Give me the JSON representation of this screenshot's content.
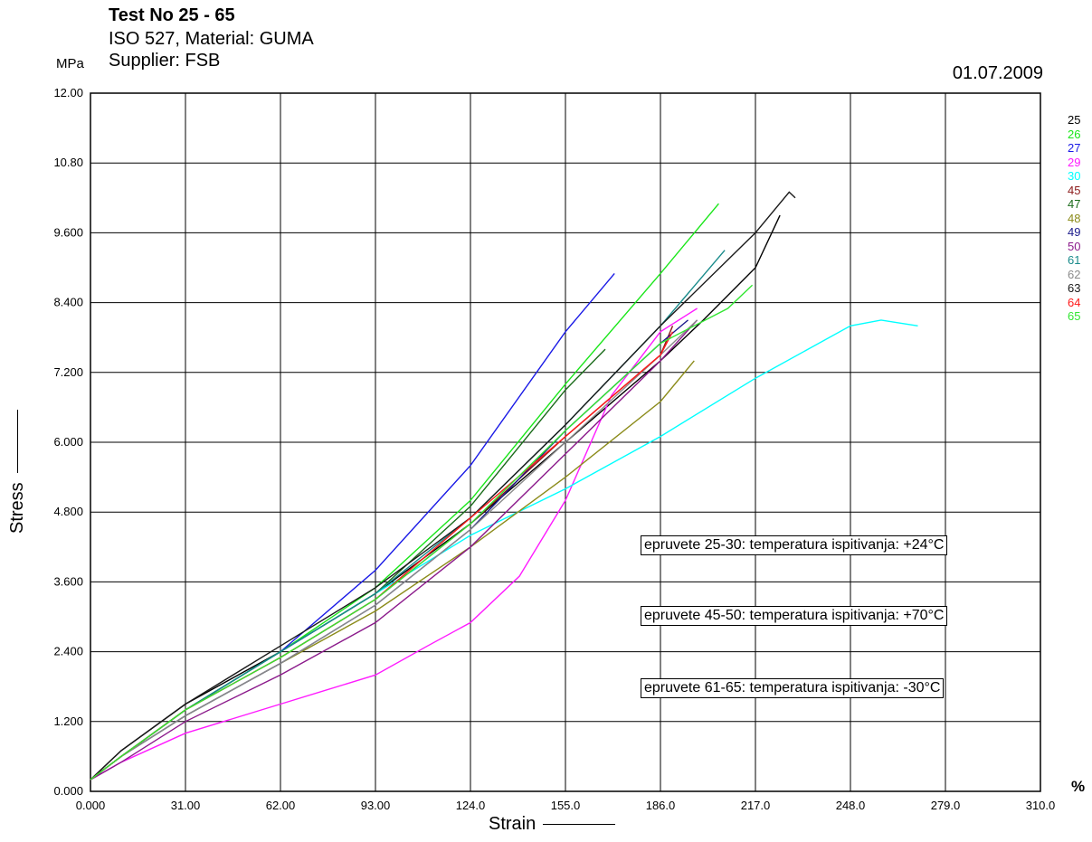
{
  "header": {
    "title": "Test No  25 - 65",
    "line2": "ISO 527, Material: GUMA",
    "line3": "Supplier: FSB",
    "date": "01.07.2009"
  },
  "colors": {
    "25": "#000000",
    "26": "#19e619",
    "27": "#1a1ae6",
    "29": "#ff1aff",
    "30": "#00ffff",
    "45": "#8b1a1a",
    "47": "#1a6b1a",
    "48": "#8b8b1a",
    "49": "#1a1a8b",
    "50": "#8b1a8b",
    "61": "#1a8b8b",
    "62": "#8b8b8b",
    "63": "#1a1a1a",
    "64": "#ff1a1a",
    "65": "#33e633"
  },
  "notes": [
    "epruvete 25-30: temperatura ispitivanja: +24°C",
    "epruvete 45-50: temperatura ispitivanja: +70°C",
    "epruvete 61-65: temperatura ispitivanja: -30°C"
  ],
  "chart_data": {
    "type": "line",
    "title": "Test No  25 - 65",
    "xlabel": "Strain",
    "ylabel": "Stress",
    "x_unit": "%",
    "y_unit": "MPa",
    "xlim": [
      0,
      310
    ],
    "ylim": [
      0,
      12
    ],
    "grid": true,
    "legend_position": "right",
    "x_ticks": [
      "0.000",
      "31.00",
      "62.00",
      "93.00",
      "124.0",
      "155.0",
      "186.0",
      "217.0",
      "248.0",
      "279.0",
      "310.0"
    ],
    "y_ticks": [
      "0.000",
      "1.200",
      "2.400",
      "3.600",
      "4.800",
      "6.000",
      "7.200",
      "8.400",
      "9.600",
      "10.80",
      "12.00"
    ],
    "series": [
      {
        "name": "25",
        "color": "#000000",
        "points": [
          [
            0,
            0.2
          ],
          [
            10,
            0.7
          ],
          [
            31,
            1.5
          ],
          [
            62,
            2.4
          ],
          [
            93,
            3.4
          ],
          [
            124,
            4.6
          ],
          [
            155,
            6.0
          ],
          [
            186,
            7.4
          ],
          [
            200,
            8.1
          ],
          [
            217,
            9.0
          ],
          [
            225,
            9.9
          ]
        ]
      },
      {
        "name": "26",
        "color": "#19e619",
        "points": [
          [
            0,
            0.2
          ],
          [
            10,
            0.6
          ],
          [
            31,
            1.4
          ],
          [
            62,
            2.4
          ],
          [
            93,
            3.5
          ],
          [
            124,
            5.0
          ],
          [
            155,
            7.0
          ],
          [
            186,
            8.9
          ],
          [
            205,
            10.1
          ]
        ]
      },
      {
        "name": "27",
        "color": "#1a1ae6",
        "points": [
          [
            0,
            0.2
          ],
          [
            10,
            0.6
          ],
          [
            31,
            1.4
          ],
          [
            62,
            2.4
          ],
          [
            93,
            3.8
          ],
          [
            124,
            5.6
          ],
          [
            155,
            7.9
          ],
          [
            171,
            8.9
          ]
        ]
      },
      {
        "name": "29",
        "color": "#ff1aff",
        "points": [
          [
            0,
            0.2
          ],
          [
            10,
            0.5
          ],
          [
            31,
            1.0
          ],
          [
            62,
            1.5
          ],
          [
            93,
            2.0
          ],
          [
            110,
            2.5
          ],
          [
            124,
            2.9
          ],
          [
            140,
            3.7
          ],
          [
            155,
            5.0
          ],
          [
            170,
            6.8
          ],
          [
            186,
            7.9
          ],
          [
            198,
            8.3
          ]
        ]
      },
      {
        "name": "30",
        "color": "#00ffff",
        "points": [
          [
            0,
            0.2
          ],
          [
            10,
            0.6
          ],
          [
            31,
            1.4
          ],
          [
            62,
            2.4
          ],
          [
            93,
            3.4
          ],
          [
            124,
            4.4
          ],
          [
            155,
            5.2
          ],
          [
            186,
            6.1
          ],
          [
            217,
            7.1
          ],
          [
            248,
            8.0
          ],
          [
            258,
            8.1
          ],
          [
            270,
            8.0
          ]
        ]
      },
      {
        "name": "45",
        "color": "#8b1a1a",
        "points": [
          [
            0,
            0.2
          ],
          [
            10,
            0.6
          ],
          [
            31,
            1.4
          ],
          [
            62,
            2.3
          ],
          [
            93,
            3.3
          ],
          [
            124,
            4.6
          ],
          [
            155,
            6.1
          ],
          [
            186,
            7.5
          ],
          [
            190,
            8.0
          ]
        ]
      },
      {
        "name": "47",
        "color": "#1a6b1a",
        "points": [
          [
            0,
            0.2
          ],
          [
            10,
            0.6
          ],
          [
            31,
            1.4
          ],
          [
            62,
            2.4
          ],
          [
            93,
            3.4
          ],
          [
            124,
            4.9
          ],
          [
            155,
            6.9
          ],
          [
            168,
            7.6
          ]
        ]
      },
      {
        "name": "48",
        "color": "#8b8b1a",
        "points": [
          [
            0,
            0.2
          ],
          [
            10,
            0.6
          ],
          [
            31,
            1.3
          ],
          [
            62,
            2.2
          ],
          [
            93,
            3.1
          ],
          [
            124,
            4.2
          ],
          [
            155,
            5.4
          ],
          [
            186,
            6.7
          ],
          [
            197,
            7.4
          ]
        ]
      },
      {
        "name": "49",
        "color": "#1a1a8b",
        "points": [
          [
            0,
            0.2
          ],
          [
            10,
            0.6
          ],
          [
            31,
            1.3
          ],
          [
            62,
            2.2
          ],
          [
            93,
            3.2
          ],
          [
            124,
            4.5
          ],
          [
            155,
            6.2
          ],
          [
            186,
            7.7
          ],
          [
            195,
            8.1
          ]
        ]
      },
      {
        "name": "50",
        "color": "#8b1a8b",
        "points": [
          [
            0,
            0.2
          ],
          [
            10,
            0.5
          ],
          [
            31,
            1.2
          ],
          [
            62,
            2.0
          ],
          [
            93,
            2.9
          ],
          [
            124,
            4.2
          ],
          [
            155,
            5.8
          ],
          [
            186,
            7.4
          ],
          [
            198,
            8.1
          ]
        ]
      },
      {
        "name": "61",
        "color": "#1a8b8b",
        "points": [
          [
            0,
            0.2
          ],
          [
            10,
            0.6
          ],
          [
            31,
            1.4
          ],
          [
            62,
            2.4
          ],
          [
            93,
            3.4
          ],
          [
            124,
            4.7
          ],
          [
            155,
            6.3
          ],
          [
            186,
            8.0
          ],
          [
            207,
            9.3
          ]
        ]
      },
      {
        "name": "62",
        "color": "#8b8b8b",
        "points": [
          [
            0,
            0.2
          ],
          [
            10,
            0.6
          ],
          [
            31,
            1.3
          ],
          [
            62,
            2.2
          ],
          [
            93,
            3.2
          ],
          [
            124,
            4.5
          ],
          [
            155,
            6.0
          ],
          [
            186,
            7.5
          ],
          [
            198,
            8.1
          ]
        ]
      },
      {
        "name": "63",
        "color": "#1a1a1a",
        "points": [
          [
            0,
            0.2
          ],
          [
            10,
            0.7
          ],
          [
            31,
            1.5
          ],
          [
            62,
            2.5
          ],
          [
            93,
            3.5
          ],
          [
            124,
            4.7
          ],
          [
            155,
            6.3
          ],
          [
            186,
            8.0
          ],
          [
            217,
            9.6
          ],
          [
            228,
            10.3
          ],
          [
            230,
            10.2
          ]
        ]
      },
      {
        "name": "64",
        "color": "#ff1a1a",
        "points": [
          [
            0,
            0.2
          ],
          [
            10,
            0.6
          ],
          [
            31,
            1.4
          ],
          [
            62,
            2.3
          ],
          [
            93,
            3.3
          ],
          [
            124,
            4.7
          ],
          [
            155,
            6.1
          ],
          [
            186,
            7.5
          ],
          [
            190,
            7.9
          ]
        ]
      },
      {
        "name": "65",
        "color": "#33e633",
        "points": [
          [
            0,
            0.2
          ],
          [
            10,
            0.6
          ],
          [
            31,
            1.4
          ],
          [
            62,
            2.3
          ],
          [
            93,
            3.3
          ],
          [
            124,
            4.6
          ],
          [
            155,
            6.2
          ],
          [
            186,
            7.7
          ],
          [
            208,
            8.3
          ],
          [
            216,
            8.7
          ]
        ]
      }
    ]
  }
}
